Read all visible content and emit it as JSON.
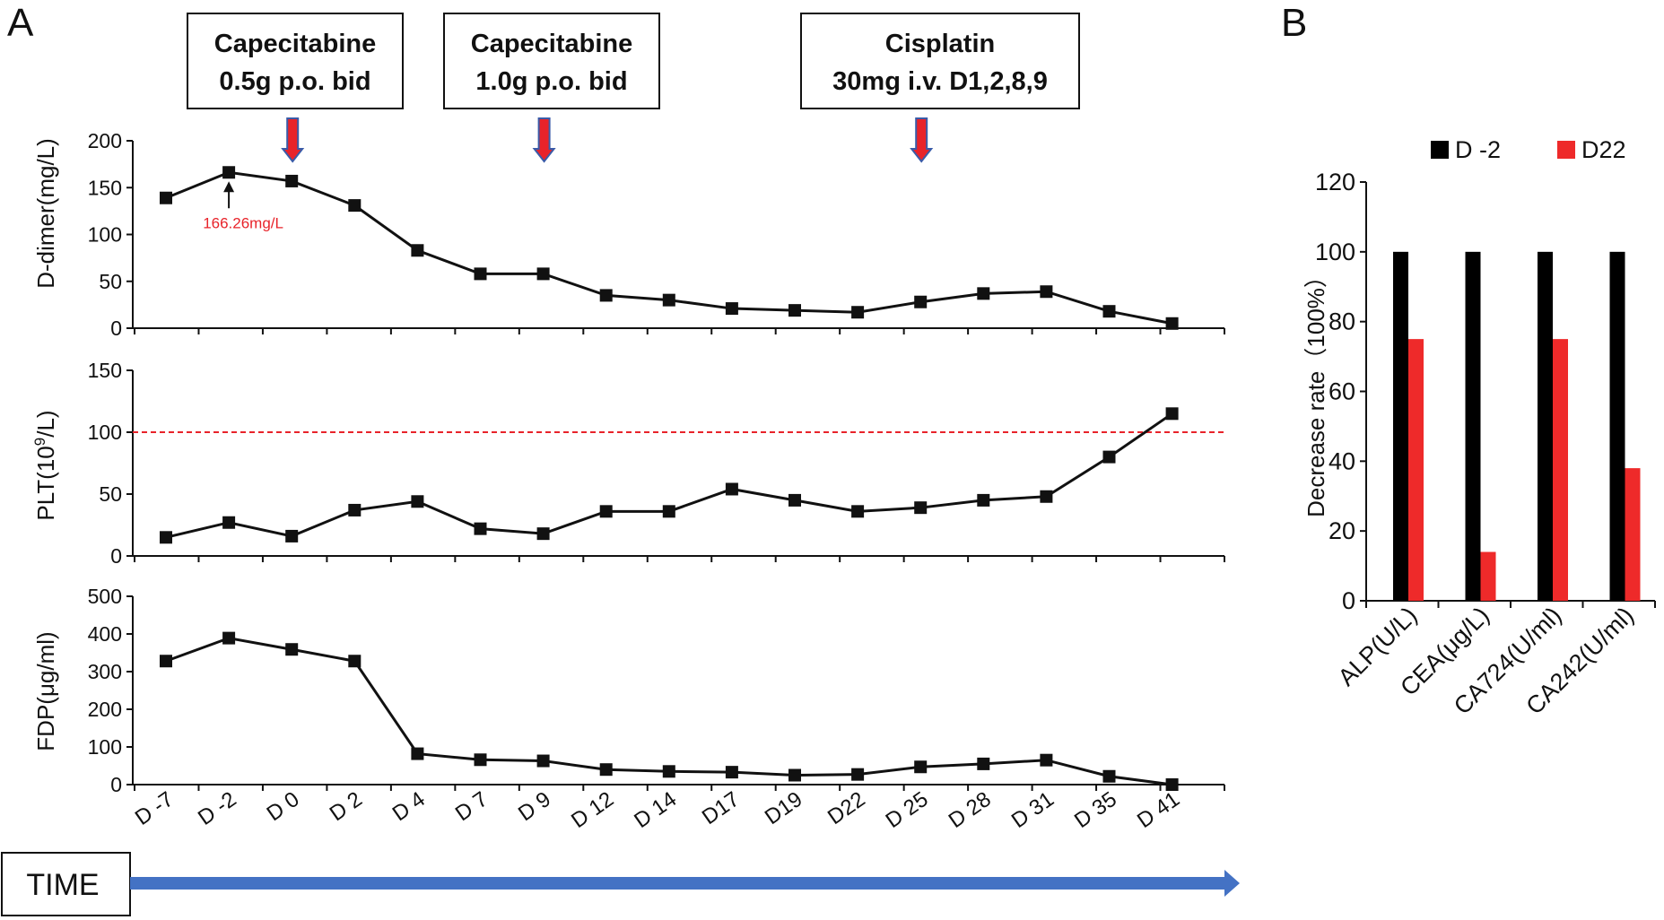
{
  "panels": {
    "a_label": "A",
    "b_label": "B"
  },
  "treatments": [
    {
      "line1": "Capecitabine",
      "line2": "0.5g p.o. bid",
      "at_index": 2
    },
    {
      "line1": "Capecitabine",
      "line2": "1.0g p.o. bid",
      "at_index": 6
    },
    {
      "line1": "Cisplatin",
      "line2": "30mg i.v. D1,2,8,9",
      "at_index": 12
    }
  ],
  "timeline_label": "TIME",
  "colors": {
    "line": "#111111",
    "arrow_fill": "#e8232a",
    "arrow_stroke": "#3a5ba8",
    "timeline": "#4472c4",
    "threshold": "#e8232a",
    "bar_d_minus2": "#000000",
    "bar_d22": "#ee2a2a",
    "annotation": "#e8232a"
  },
  "chart_data": [
    {
      "type": "line",
      "ylabel": "D-dimer(mg/L)",
      "ylim": [
        0,
        200
      ],
      "yticks": [
        "0",
        "50",
        "100",
        "150",
        "200"
      ],
      "categories": [
        "D -7",
        "D -2",
        "D 0",
        "D 2",
        "D 4",
        "D 7",
        "D 9",
        "D 12",
        "D 14",
        "D17",
        "D19",
        "D22",
        "D 25",
        "D 28",
        "D 31",
        "D 35",
        "D 41"
      ],
      "values": [
        139,
        166.26,
        157,
        131,
        83,
        58,
        58,
        35,
        30,
        21,
        19,
        17,
        28,
        37,
        39,
        18,
        5
      ],
      "annotation": {
        "text": "166.26mg/L",
        "index": 1
      }
    },
    {
      "type": "line",
      "ylabel_main": "PLT(10",
      "ylabel_sup": "9",
      "ylabel_end": "/L)",
      "ylim": [
        0,
        150
      ],
      "yticks": [
        "0",
        "50",
        "100",
        "150"
      ],
      "threshold": 100,
      "values": [
        15,
        27,
        16,
        37,
        44,
        22,
        18,
        36,
        36,
        54,
        45,
        36,
        39,
        45,
        48,
        80,
        115
      ]
    },
    {
      "type": "line",
      "ylabel": "FDP(μg/ml)",
      "ylim": [
        0,
        500
      ],
      "yticks": [
        "0",
        "100",
        "200",
        "300",
        "400",
        "500"
      ],
      "values": [
        328,
        389,
        359,
        328,
        82,
        66,
        63,
        40,
        35,
        33,
        25,
        27,
        47,
        55,
        65,
        22,
        0
      ]
    },
    {
      "type": "bar",
      "ylabel": "Decrease rate（100%）",
      "ylim": [
        0,
        120
      ],
      "yticks": [
        "0",
        "20",
        "40",
        "60",
        "80",
        "100",
        "120"
      ],
      "categories": [
        "ALP(U/L)",
        "CEA(μg/L)",
        "CA724(U/ml)",
        "CA242(U/ml)"
      ],
      "series": [
        {
          "name": "D -2",
          "values": [
            100,
            100,
            100,
            100
          ]
        },
        {
          "name": "D22",
          "values": [
            75,
            14,
            75,
            38
          ]
        }
      ]
    }
  ]
}
